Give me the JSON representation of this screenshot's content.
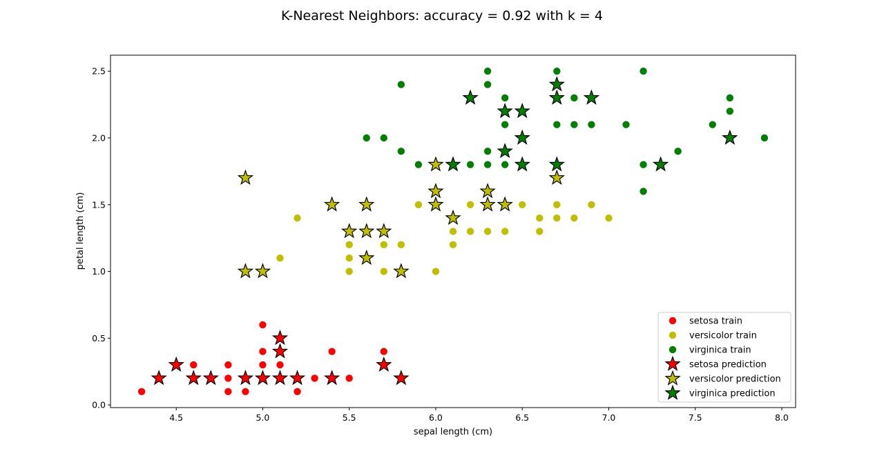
{
  "chart_data": {
    "type": "scatter",
    "title": "K-Nearest Neighbors: accuracy = 0.92 with k = 4",
    "xlabel": "sepal length (cm)",
    "ylabel": "petal length (cm)",
    "xlim": [
      4.12,
      8.08
    ],
    "ylim": [
      -0.02,
      2.62
    ],
    "x_ticks": [
      "4.5",
      "5.0",
      "5.5",
      "6.0",
      "6.5",
      "7.0",
      "7.5",
      "8.0"
    ],
    "y_ticks": [
      "0.0",
      "0.5",
      "1.0",
      "1.5",
      "2.0",
      "2.5"
    ],
    "grid": false,
    "legend_position": "bottom-right",
    "colors": {
      "setosa": "#ff0000",
      "versicolor": "#bfbf00",
      "virginica": "#008000"
    },
    "series": [
      {
        "name": "setosa train",
        "marker": "circle",
        "color": "#ff0000",
        "points": [
          [
            4.3,
            0.1
          ],
          [
            4.6,
            0.3
          ],
          [
            4.8,
            0.3
          ],
          [
            4.8,
            0.2
          ],
          [
            4.8,
            0.1
          ],
          [
            4.9,
            0.1
          ],
          [
            5.0,
            0.6
          ],
          [
            5.0,
            0.4
          ],
          [
            5.0,
            0.3
          ],
          [
            5.1,
            0.3
          ],
          [
            5.2,
            0.1
          ],
          [
            5.3,
            0.2
          ],
          [
            5.4,
            0.4
          ],
          [
            5.5,
            0.2
          ],
          [
            5.7,
            0.4
          ]
        ]
      },
      {
        "name": "versicolor train",
        "marker": "circle",
        "color": "#bfbf00",
        "points": [
          [
            5.1,
            1.1
          ],
          [
            5.2,
            1.4
          ],
          [
            5.5,
            1.2
          ],
          [
            5.5,
            1.1
          ],
          [
            5.5,
            1.0
          ],
          [
            5.7,
            1.2
          ],
          [
            5.7,
            1.0
          ],
          [
            5.8,
            1.2
          ],
          [
            5.9,
            1.5
          ],
          [
            6.0,
            1.0
          ],
          [
            6.1,
            1.3
          ],
          [
            6.1,
            1.2
          ],
          [
            6.2,
            1.5
          ],
          [
            6.2,
            1.3
          ],
          [
            6.3,
            1.3
          ],
          [
            6.4,
            1.3
          ],
          [
            6.5,
            1.5
          ],
          [
            6.6,
            1.4
          ],
          [
            6.6,
            1.3
          ],
          [
            6.7,
            1.5
          ],
          [
            6.7,
            1.4
          ],
          [
            6.8,
            1.4
          ],
          [
            6.9,
            1.5
          ],
          [
            7.0,
            1.4
          ]
        ]
      },
      {
        "name": "virginica train",
        "marker": "circle",
        "color": "#008000",
        "points": [
          [
            5.6,
            2.0
          ],
          [
            5.7,
            2.0
          ],
          [
            5.8,
            2.4
          ],
          [
            5.8,
            1.9
          ],
          [
            5.9,
            1.8
          ],
          [
            6.2,
            1.8
          ],
          [
            6.3,
            2.5
          ],
          [
            6.3,
            2.4
          ],
          [
            6.3,
            1.9
          ],
          [
            6.3,
            1.8
          ],
          [
            6.4,
            2.3
          ],
          [
            6.4,
            2.1
          ],
          [
            6.4,
            1.8
          ],
          [
            6.5,
            2.0
          ],
          [
            6.7,
            2.5
          ],
          [
            6.7,
            2.1
          ],
          [
            6.8,
            2.3
          ],
          [
            6.8,
            2.1
          ],
          [
            6.9,
            2.1
          ],
          [
            7.1,
            2.1
          ],
          [
            7.2,
            2.5
          ],
          [
            7.2,
            1.8
          ],
          [
            7.2,
            1.6
          ],
          [
            7.4,
            1.9
          ],
          [
            7.6,
            2.1
          ],
          [
            7.7,
            2.3
          ],
          [
            7.7,
            2.2
          ],
          [
            7.9,
            2.0
          ]
        ]
      },
      {
        "name": "setosa prediction",
        "marker": "star",
        "color": "#ff0000",
        "points": [
          [
            4.4,
            0.2
          ],
          [
            4.5,
            0.3
          ],
          [
            4.6,
            0.2
          ],
          [
            4.7,
            0.2
          ],
          [
            4.9,
            0.2
          ],
          [
            5.0,
            0.2
          ],
          [
            5.1,
            0.5
          ],
          [
            5.1,
            0.4
          ],
          [
            5.1,
            0.2
          ],
          [
            5.2,
            0.2
          ],
          [
            5.4,
            0.2
          ],
          [
            5.7,
            0.3
          ],
          [
            5.8,
            0.2
          ]
        ]
      },
      {
        "name": "versicolor prediction",
        "marker": "star",
        "color": "#bfbf00",
        "points": [
          [
            4.9,
            1.7
          ],
          [
            4.9,
            1.0
          ],
          [
            5.0,
            1.0
          ],
          [
            5.4,
            1.5
          ],
          [
            5.5,
            1.3
          ],
          [
            5.6,
            1.5
          ],
          [
            5.6,
            1.3
          ],
          [
            5.6,
            1.1
          ],
          [
            5.7,
            1.3
          ],
          [
            5.8,
            1.0
          ],
          [
            6.0,
            1.8
          ],
          [
            6.0,
            1.6
          ],
          [
            6.0,
            1.5
          ],
          [
            6.1,
            1.4
          ],
          [
            6.3,
            1.6
          ],
          [
            6.3,
            1.5
          ],
          [
            6.4,
            1.5
          ],
          [
            6.7,
            1.7
          ]
        ]
      },
      {
        "name": "virginica prediction",
        "marker": "star",
        "color": "#008000",
        "points": [
          [
            6.1,
            1.8
          ],
          [
            6.2,
            2.3
          ],
          [
            6.4,
            2.2
          ],
          [
            6.4,
            1.9
          ],
          [
            6.5,
            2.2
          ],
          [
            6.5,
            2.0
          ],
          [
            6.5,
            1.8
          ],
          [
            6.7,
            2.4
          ],
          [
            6.7,
            2.3
          ],
          [
            6.7,
            1.8
          ],
          [
            6.9,
            2.3
          ],
          [
            7.3,
            1.8
          ],
          [
            7.7,
            2.0
          ]
        ]
      }
    ]
  }
}
